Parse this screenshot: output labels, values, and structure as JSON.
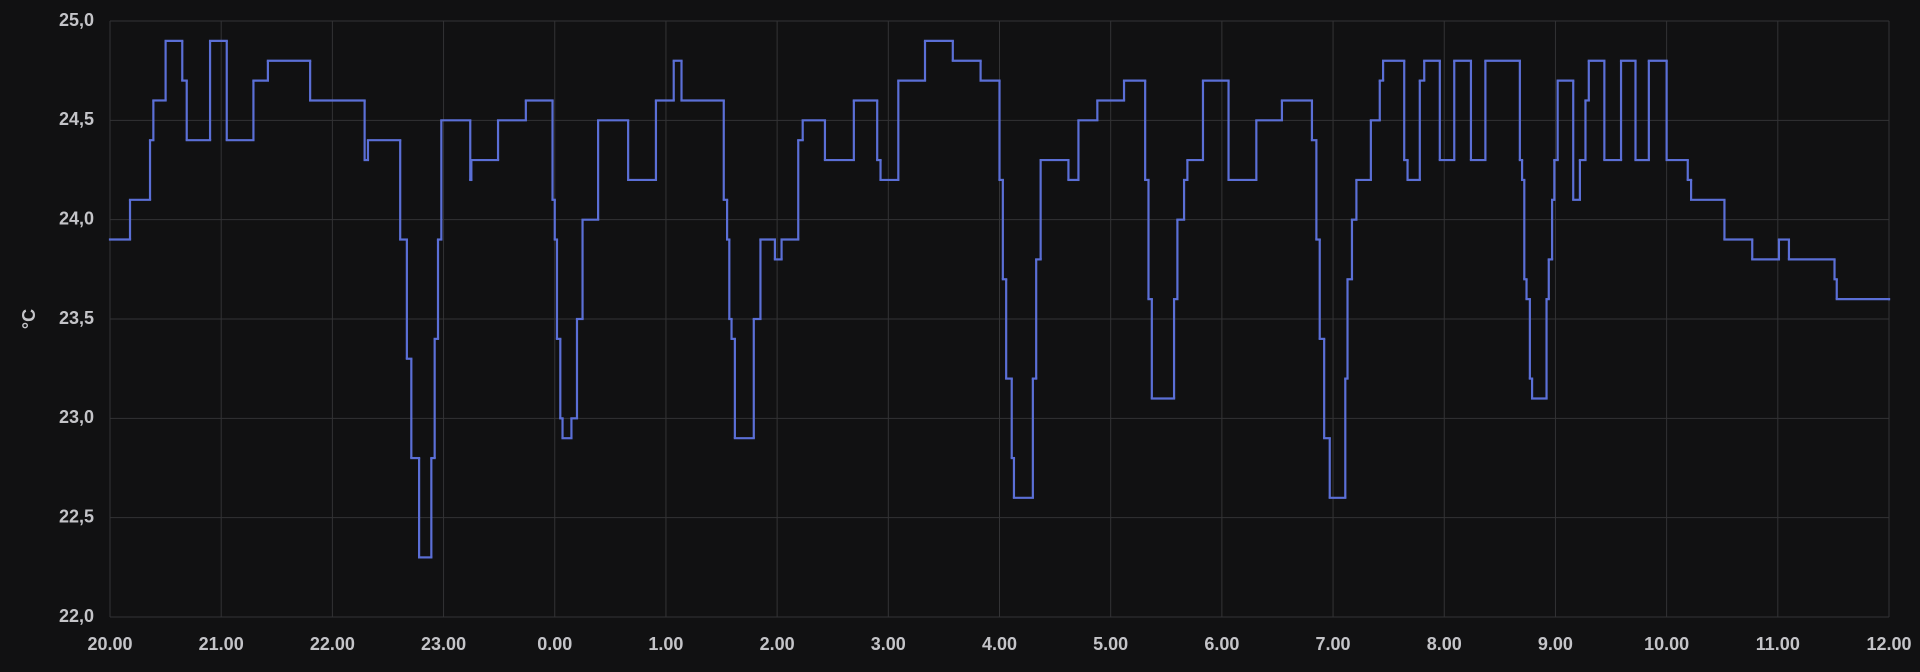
{
  "chart_data": {
    "type": "step-line",
    "y_label": "°C",
    "x": [
      0,
      0.18,
      0.36,
      0.39,
      0.5,
      0.65,
      0.69,
      0.9,
      1.05,
      1.29,
      1.42,
      1.8,
      2.29,
      2.32,
      2.61,
      2.67,
      2.71,
      2.78,
      2.89,
      2.92,
      2.95,
      2.98,
      3.24,
      3.25,
      3.49,
      3.74,
      3.98,
      4.0,
      4.02,
      4.05,
      4.07,
      4.15,
      4.2,
      4.25,
      4.39,
      4.66,
      4.91,
      5.07,
      5.14,
      5.52,
      5.55,
      5.57,
      5.59,
      5.62,
      5.79,
      5.85,
      5.98,
      6.04,
      6.19,
      6.23,
      6.43,
      6.69,
      6.9,
      6.93,
      7.09,
      7.33,
      7.58,
      7.83,
      8.0,
      8.03,
      8.06,
      8.11,
      8.13,
      8.3,
      8.33,
      8.37,
      8.62,
      8.71,
      8.88,
      9.12,
      9.31,
      9.34,
      9.37,
      9.57,
      9.6,
      9.66,
      9.69,
      9.83,
      10.06,
      10.31,
      10.54,
      10.81,
      10.85,
      10.88,
      10.92,
      10.97,
      11.11,
      11.13,
      11.17,
      11.21,
      11.34,
      11.42,
      11.45,
      11.64,
      11.67,
      11.78,
      11.82,
      11.96,
      12.09,
      12.24,
      12.37,
      12.68,
      12.7,
      12.72,
      12.74,
      12.77,
      12.79,
      12.92,
      12.94,
      12.97,
      12.99,
      13.02,
      13.16,
      13.22,
      13.27,
      13.3,
      13.44,
      13.59,
      13.72,
      13.84,
      14.0,
      14.19,
      14.22,
      14.52,
      14.77,
      15.01,
      15.1,
      15.51,
      15.53,
      16.0
    ],
    "series": [
      {
        "color": "#5b6fd6",
        "values": [
          23.9,
          24.1,
          24.4,
          24.6,
          24.9,
          24.7,
          24.4,
          24.9,
          24.4,
          24.7,
          24.8,
          24.6,
          24.3,
          24.4,
          23.9,
          23.3,
          22.8,
          22.3,
          22.8,
          23.4,
          23.9,
          24.5,
          24.2,
          24.3,
          24.5,
          24.6,
          24.1,
          23.9,
          23.4,
          23.0,
          22.9,
          23.0,
          23.5,
          24.0,
          24.5,
          24.2,
          24.6,
          24.8,
          24.6,
          24.1,
          23.9,
          23.5,
          23.4,
          22.9,
          23.5,
          23.9,
          23.8,
          23.9,
          24.4,
          24.5,
          24.3,
          24.6,
          24.3,
          24.2,
          24.7,
          24.9,
          24.8,
          24.7,
          24.2,
          23.7,
          23.2,
          22.8,
          22.6,
          23.2,
          23.8,
          24.3,
          24.2,
          24.5,
          24.6,
          24.7,
          24.2,
          23.6,
          23.1,
          23.6,
          24.0,
          24.2,
          24.3,
          24.7,
          24.2,
          24.5,
          24.6,
          24.4,
          23.9,
          23.4,
          22.9,
          22.6,
          23.2,
          23.7,
          24.0,
          24.2,
          24.5,
          24.7,
          24.8,
          24.3,
          24.2,
          24.7,
          24.8,
          24.3,
          24.8,
          24.3,
          24.8,
          24.3,
          24.2,
          23.7,
          23.6,
          23.2,
          23.1,
          23.6,
          23.8,
          24.1,
          24.3,
          24.7,
          24.1,
          24.3,
          24.6,
          24.8,
          24.3,
          24.8,
          24.3,
          24.8,
          24.3,
          24.2,
          24.1,
          23.9,
          23.8,
          23.9,
          23.8,
          23.7,
          23.6,
          23.6
        ]
      }
    ],
    "xlim": [
      0,
      16
    ],
    "xticks": [
      {
        "value": 0,
        "label": "20.00"
      },
      {
        "value": 1,
        "label": "21.00"
      },
      {
        "value": 2,
        "label": "22.00"
      },
      {
        "value": 3,
        "label": "23.00"
      },
      {
        "value": 4,
        "label": "0.00"
      },
      {
        "value": 5,
        "label": "1.00"
      },
      {
        "value": 6,
        "label": "2.00"
      },
      {
        "value": 7,
        "label": "3.00"
      },
      {
        "value": 8,
        "label": "4.00"
      },
      {
        "value": 9,
        "label": "5.00"
      },
      {
        "value": 10,
        "label": "6.00"
      },
      {
        "value": 11,
        "label": "7.00"
      },
      {
        "value": 12,
        "label": "8.00"
      },
      {
        "value": 13,
        "label": "9.00"
      },
      {
        "value": 14,
        "label": "10.00"
      },
      {
        "value": 15,
        "label": "11.00"
      },
      {
        "value": 16,
        "label": "12.00"
      }
    ],
    "ylim": [
      22,
      25
    ],
    "yticks": [
      {
        "value": 22,
        "label": "22,0"
      },
      {
        "value": 22.5,
        "label": "22,5"
      },
      {
        "value": 23,
        "label": "23,0"
      },
      {
        "value": 23.5,
        "label": "23,5"
      },
      {
        "value": 24,
        "label": "24,0"
      },
      {
        "value": 24.5,
        "label": "24,5"
      },
      {
        "value": 25,
        "label": "25,0"
      }
    ],
    "grid": true
  }
}
